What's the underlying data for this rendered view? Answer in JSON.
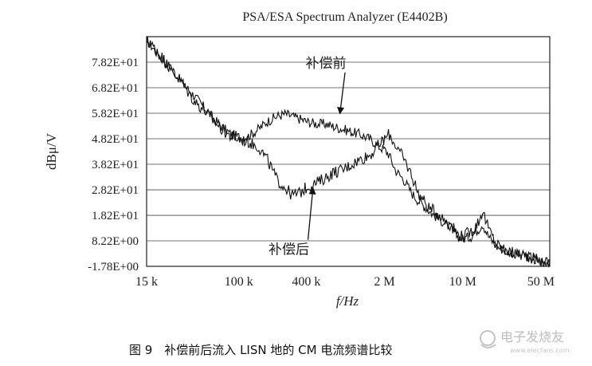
{
  "chart_data": {
    "type": "line",
    "title": "PSA/ESA Spectrum Analyzer (E4402B)",
    "xlabel": "f/Hz",
    "ylabel": "dBμ/V",
    "x_scale": "log",
    "xlim": [
      15000,
      60000000
    ],
    "ylim": [
      -1.78,
      88.2
    ],
    "x_ticks": [
      {
        "value": 15000,
        "label": "15 k"
      },
      {
        "value": 100000,
        "label": "100 k"
      },
      {
        "value": 400000,
        "label": "400 k"
      },
      {
        "value": 2000000,
        "label": "2 M"
      },
      {
        "value": 10000000,
        "label": "10 M"
      },
      {
        "value": 50000000,
        "label": "50 M"
      }
    ],
    "y_ticks": [
      {
        "value": 78.2,
        "label": "7.82E+01"
      },
      {
        "value": 68.2,
        "label": "6.82E+01"
      },
      {
        "value": 58.2,
        "label": "5.82E+01"
      },
      {
        "value": 48.2,
        "label": "4.82E+01"
      },
      {
        "value": 38.2,
        "label": "3.82E+01"
      },
      {
        "value": 28.2,
        "label": "2.82E+01"
      },
      {
        "value": 18.2,
        "label": "1.82E+01"
      },
      {
        "value": 8.22,
        "label": "8.22E+00"
      },
      {
        "value": -1.78,
        "label": "-1.78E+00"
      }
    ],
    "grid": true,
    "series": [
      {
        "name": "补偿前",
        "noise": 2.0,
        "x": [
          15000,
          20000,
          25000,
          30000,
          40000,
          50000,
          60000,
          70000,
          85000,
          100000,
          120000,
          150000,
          180000,
          220000,
          260000,
          300000,
          350000,
          400000,
          500000,
          600000,
          700000,
          850000,
          1000000,
          1200000,
          1500000,
          1800000,
          2000000,
          2200000,
          2500000,
          3000000,
          3500000,
          4000000,
          5000000,
          6000000,
          7000000,
          8000000,
          9000000,
          10000000,
          12000000,
          14000000,
          15000000,
          17000000,
          20000000,
          25000000,
          30000000,
          40000000,
          50000000,
          60000000
        ],
        "y": [
          87,
          80,
          76,
          71,
          65,
          60,
          56,
          53,
          50,
          49,
          49,
          52,
          55,
          57,
          58,
          57,
          56,
          55,
          54,
          54,
          53,
          52,
          51,
          50,
          48,
          45,
          44,
          42,
          36,
          32,
          27,
          24,
          20,
          17,
          15,
          13,
          10,
          9,
          10,
          13,
          15,
          10,
          6,
          4,
          3,
          2,
          0,
          0
        ]
      },
      {
        "name": "补偿后",
        "noise": 2.4,
        "x": [
          15000,
          20000,
          25000,
          30000,
          40000,
          50000,
          60000,
          70000,
          85000,
          100000,
          120000,
          150000,
          180000,
          220000,
          260000,
          300000,
          350000,
          400000,
          500000,
          600000,
          700000,
          850000,
          1000000,
          1200000,
          1500000,
          1800000,
          2000000,
          2200000,
          2500000,
          3000000,
          3500000,
          4000000,
          5000000,
          6000000,
          7000000,
          8000000,
          9000000,
          10000000,
          12000000,
          14000000,
          15000000,
          17000000,
          20000000,
          25000000,
          30000000,
          40000000,
          50000000,
          60000000
        ],
        "y": [
          87,
          81,
          75,
          71,
          63,
          59,
          55,
          52,
          49,
          48,
          47,
          45,
          40,
          32,
          29,
          26,
          27,
          29,
          31,
          33,
          35,
          36,
          38,
          40,
          42,
          46,
          48,
          50,
          46,
          40,
          34,
          27,
          21,
          19,
          16,
          14,
          11,
          10,
          12,
          16,
          20,
          13,
          7,
          4,
          3,
          2,
          0,
          0
        ]
      }
    ],
    "annotations": [
      {
        "text": "补偿前",
        "x": 600000,
        "y": 76,
        "arrow_to_x": 800000,
        "arrow_to_y": 58
      },
      {
        "text": "补偿后",
        "x": 280000,
        "y": 3,
        "arrow_to_x": 460000,
        "arrow_to_y": 29
      }
    ]
  },
  "caption": "图 9　补偿前后流入 LISN 地的 CM 电流频谱比较",
  "watermark": "电子发烧友",
  "watermark_url": "www.elecfans.com"
}
